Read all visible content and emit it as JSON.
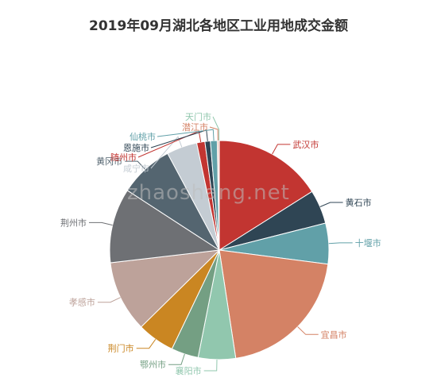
{
  "chart_data": {
    "type": "pie",
    "title": "2019年09月湖北各地区工业用地成交金额",
    "slices": [
      {
        "name": "武汉市",
        "value": 16.0,
        "color": "#c23531"
      },
      {
        "name": "黄石市",
        "value": 5.0,
        "color": "#2f4554"
      },
      {
        "name": "十堰市",
        "value": 6.0,
        "color": "#61a0a8"
      },
      {
        "name": "宜昌市",
        "value": 20.5,
        "color": "#d48265"
      },
      {
        "name": "襄阳市",
        "value": 5.5,
        "color": "#91c7ae"
      },
      {
        "name": "鄂州市",
        "value": 4.0,
        "color": "#749f83"
      },
      {
        "name": "荆门市",
        "value": 5.5,
        "color": "#ca8622"
      },
      {
        "name": "孝感市",
        "value": 10.5,
        "color": "#bda29a"
      },
      {
        "name": "荆州市",
        "value": 11.0,
        "color": "#6e7074"
      },
      {
        "name": "黄冈市",
        "value": 8.0,
        "color": "#546570"
      },
      {
        "name": "咸宁市",
        "value": 4.5,
        "color": "#c4ccd3"
      },
      {
        "name": "随州市",
        "value": 1.2,
        "color": "#c23531"
      },
      {
        "name": "恩施市",
        "value": 0.8,
        "color": "#2f4554"
      },
      {
        "name": "仙桃市",
        "value": 1.0,
        "color": "#61a0a8"
      },
      {
        "name": "潜江市",
        "value": 0.2,
        "color": "#d48265"
      },
      {
        "name": "天门市",
        "value": 0.1,
        "color": "#91c7ae"
      }
    ]
  },
  "watermark": "zhaoshang.net"
}
